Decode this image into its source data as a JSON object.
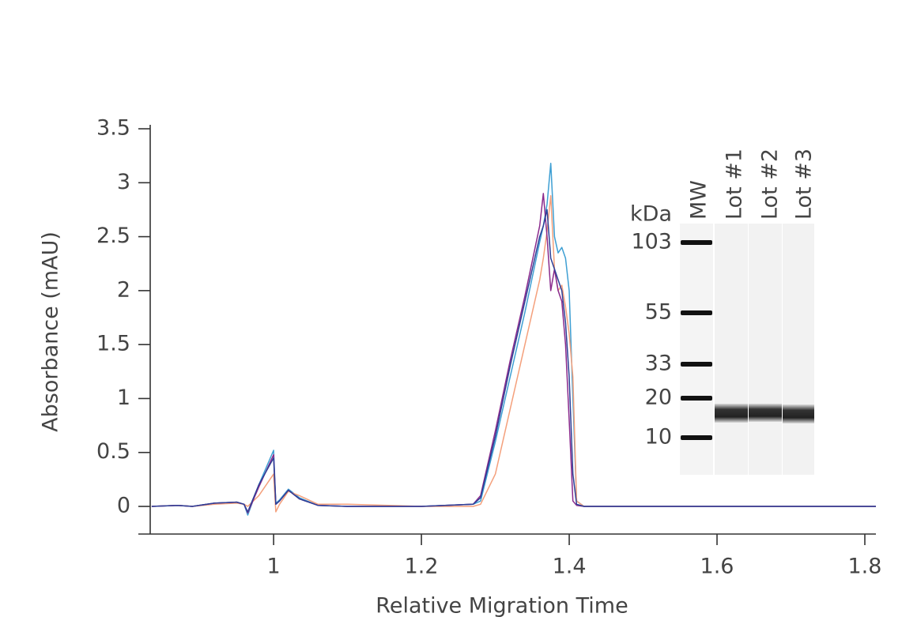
{
  "chart_data": {
    "type": "line",
    "x_label": "Relative Migration Time",
    "y_label": "Absorbance (mAU)",
    "x": [
      0.835,
      0.87,
      0.89,
      0.92,
      0.95,
      0.96,
      0.965,
      0.98,
      1.0,
      1.003,
      1.008,
      1.02,
      1.035,
      1.06,
      1.1,
      1.2,
      1.27,
      1.28,
      1.3,
      1.32,
      1.34,
      1.36,
      1.365,
      1.37,
      1.375,
      1.38,
      1.385,
      1.39,
      1.395,
      1.4,
      1.405,
      1.41,
      1.42,
      1.5,
      1.6,
      1.7,
      1.8,
      1.815
    ],
    "series": [
      {
        "color": "#3e9fd3",
        "values": [
          0,
          0.01,
          0,
          0.03,
          0.04,
          0.02,
          -0.08,
          0.2,
          0.52,
          0.03,
          0.06,
          0.16,
          0.08,
          0.01,
          0,
          0,
          0.02,
          0.05,
          0.6,
          1.2,
          1.8,
          2.45,
          2.6,
          2.8,
          3.18,
          2.5,
          2.35,
          2.4,
          2.3,
          2.0,
          1.0,
          0.05,
          0,
          0,
          0,
          0,
          0,
          0
        ]
      },
      {
        "color": "#f4a07c",
        "values": [
          0,
          0.01,
          0,
          0.02,
          0.03,
          0.02,
          0,
          0.1,
          0.3,
          -0.05,
          0.02,
          0.14,
          0.1,
          0.02,
          0.02,
          0,
          0,
          0.02,
          0.3,
          0.9,
          1.5,
          2.1,
          2.3,
          2.55,
          2.88,
          2.2,
          2.0,
          2.05,
          1.85,
          1.6,
          1.2,
          0.05,
          0,
          0,
          0,
          0,
          0,
          0
        ]
      },
      {
        "color": "#8a2a8c",
        "values": [
          0,
          0.01,
          0,
          0.03,
          0.04,
          0.02,
          -0.06,
          0.18,
          0.48,
          0.02,
          0.05,
          0.15,
          0.07,
          0.01,
          0,
          0,
          0.02,
          0.1,
          0.7,
          1.35,
          1.95,
          2.6,
          2.9,
          2.5,
          2.0,
          2.2,
          2.0,
          1.9,
          1.5,
          0.8,
          0.05,
          0.01,
          0,
          0,
          0,
          0,
          0,
          0
        ]
      },
      {
        "color": "#2e3f96",
        "values": [
          0,
          0.01,
          0,
          0.03,
          0.04,
          0.02,
          -0.05,
          0.2,
          0.45,
          0.02,
          0.05,
          0.15,
          0.07,
          0.01,
          0,
          0,
          0.02,
          0.08,
          0.65,
          1.3,
          1.9,
          2.5,
          2.6,
          2.75,
          2.3,
          2.2,
          2.1,
          2.0,
          1.7,
          1.2,
          0.3,
          0.02,
          0,
          0,
          0,
          0,
          0,
          0
        ]
      }
    ],
    "xlim": [
      0.833,
      1.815
    ],
    "ylim": [
      -0.256,
      3.5
    ],
    "xticks": [
      1,
      1.2,
      1.4,
      1.6,
      1.8
    ],
    "yticks": [
      0,
      0.5,
      1,
      1.5,
      2,
      2.5,
      3,
      3.5
    ],
    "inset": {
      "unit": "kDa",
      "lanes": [
        "MW",
        "Lot #1",
        "Lot #2",
        "Lot #3"
      ],
      "ladder": [
        103,
        55,
        33,
        20,
        10
      ]
    }
  }
}
